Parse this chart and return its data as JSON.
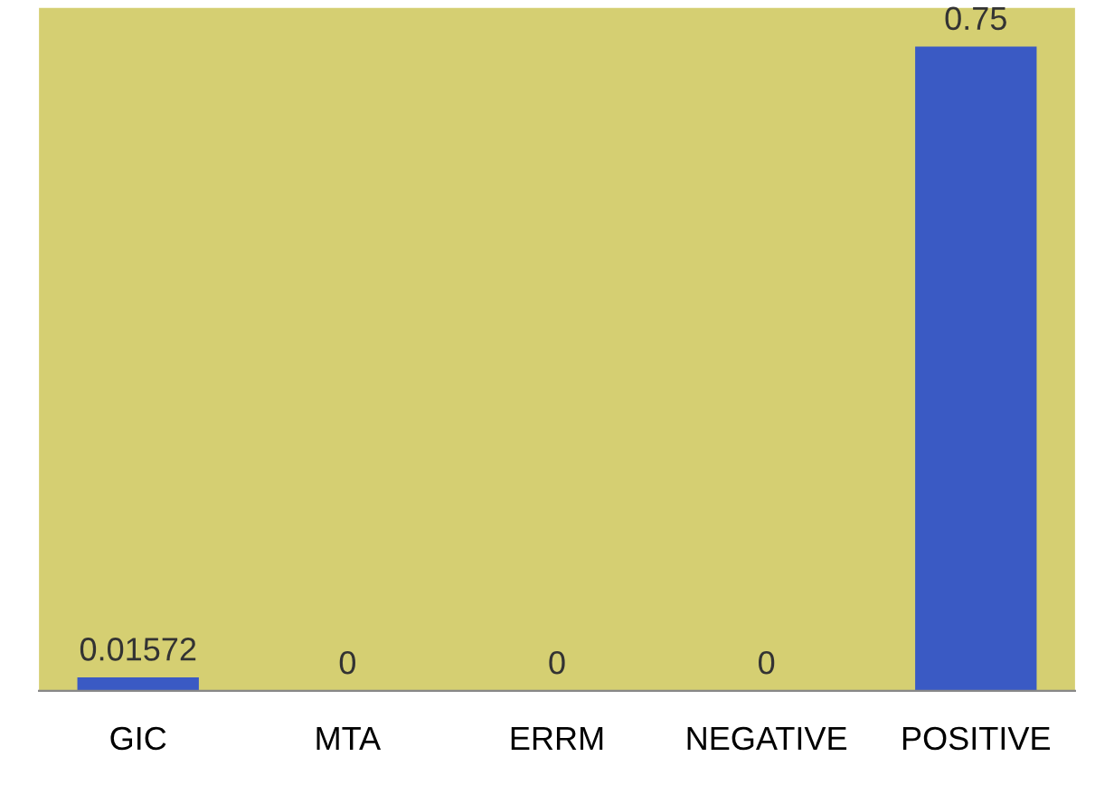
{
  "chart_data": {
    "type": "bar",
    "categories": [
      "GIC",
      "MTA",
      "ERRM",
      "NEGATIVE",
      "POSITIVE"
    ],
    "values": [
      0.01572,
      0,
      0,
      0,
      0.75
    ],
    "color": "#3a5ac4",
    "data_labels": true,
    "grid": false
  }
}
